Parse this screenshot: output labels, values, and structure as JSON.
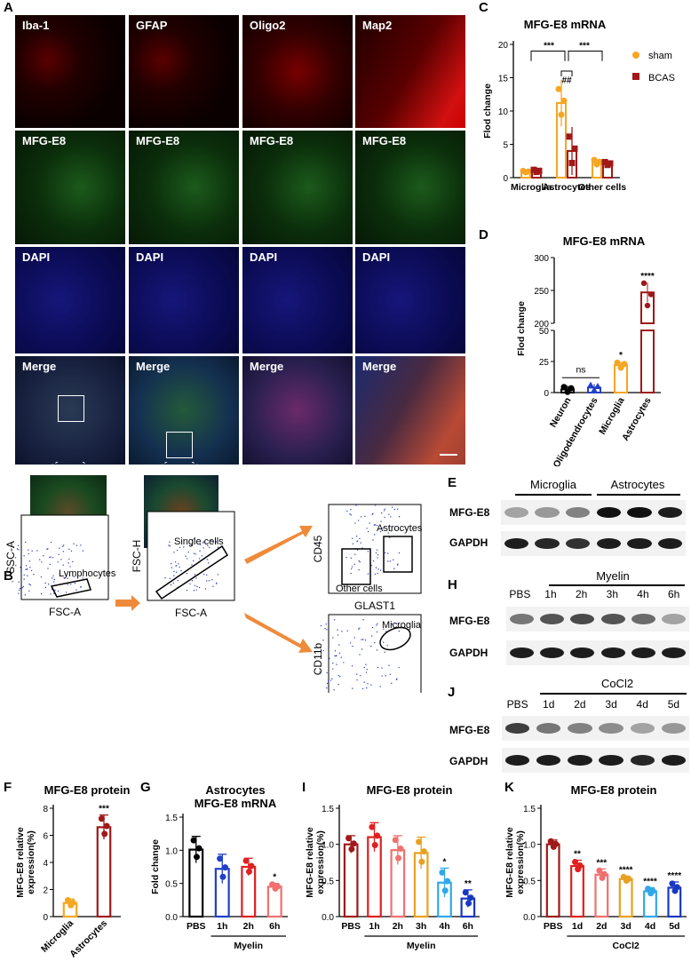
{
  "panels": {
    "A": "A",
    "B": "B",
    "C": "C",
    "D": "D",
    "E": "E",
    "F": "F",
    "G": "G",
    "H": "H",
    "I": "I",
    "J": "J",
    "K": "K"
  },
  "panel_a": {
    "row1": [
      "Iba-1",
      "GFAP",
      "Oligo2",
      "Map2"
    ],
    "row2": [
      "MFG-E8",
      "MFG-E8",
      "MFG-E8",
      "MFG-E8"
    ],
    "row3": [
      "DAPI",
      "DAPI",
      "DAPI",
      "DAPI"
    ],
    "row4": [
      "Merge",
      "Merge",
      "Merge",
      "Merge"
    ]
  },
  "panel_b": {
    "plot1": {
      "xlabel": "FSC-A",
      "ylabel": "SSC-A",
      "gate": "Lymphocytes"
    },
    "plot2": {
      "xlabel": "FSC-A",
      "ylabel": "FSC-H",
      "gate": "Single cells"
    },
    "plot3": {
      "xlabel": "GLAST1",
      "ylabel": "CD45",
      "gate1": "Astrocytes",
      "gate2": "Other cells"
    },
    "plot4": {
      "xlabel": "CD45",
      "ylabel": "CD11b",
      "gate": "Microglia"
    }
  },
  "panel_e": {
    "groups": [
      "Microglia",
      "Astrocytes"
    ],
    "rows": [
      "MFG-E8",
      "GAPDH"
    ]
  },
  "panel_h": {
    "group": "Myelin",
    "lanes": [
      "PBS",
      "1h",
      "2h",
      "3h",
      "4h",
      "6h"
    ],
    "rows": [
      "MFG-E8",
      "GAPDH"
    ]
  },
  "panel_j": {
    "group": "CoCl2",
    "lanes": [
      "PBS",
      "1d",
      "2d",
      "3d",
      "4d",
      "5d"
    ],
    "rows": [
      "MFG-E8",
      "GAPDH"
    ]
  },
  "colors": {
    "orange": "#f5a623",
    "darkred": "#a01818",
    "black": "#000000",
    "blue": "#2040c8",
    "red": "#e02020",
    "salmon": "#f07070",
    "gold": "#e8a020",
    "cyan": "#30a8e8",
    "darkblue": "#1838c0"
  },
  "chart_data": [
    {
      "id": "C",
      "type": "bar",
      "title": "MFG-E8 mRNA",
      "ylabel": "Flod change",
      "ylim": [
        0,
        20
      ],
      "yticks": [
        "0",
        "5",
        "10",
        "15",
        "20"
      ],
      "categories": [
        "Microglia",
        "Astrocytes",
        "Other cells"
      ],
      "series": [
        {
          "name": "sham",
          "values": [
            0.9,
            11.2,
            2.3
          ]
        },
        {
          "name": "BCAS",
          "values": [
            1.0,
            4.0,
            2.1
          ]
        }
      ],
      "annotations": [
        "***",
        "***",
        "##"
      ]
    },
    {
      "id": "D",
      "type": "bar",
      "title": "MFG-E8 mRNA",
      "ylabel": "Flod change",
      "yticks": [
        "0",
        "25",
        "50",
        "200",
        "250",
        "300"
      ],
      "categories": [
        "Neuron",
        "Oligodendrocytes",
        "Microglia",
        "Astrocytes"
      ],
      "values": [
        2.5,
        4.0,
        22.0,
        247.0
      ],
      "annotations": [
        "ns",
        "*",
        "****"
      ]
    },
    {
      "id": "F",
      "type": "bar",
      "title": "MFG-E8 protein",
      "ylabel": "MFG-E8 relative expression(%)",
      "ylim": [
        0,
        8
      ],
      "yticks": [
        "0",
        "2",
        "4",
        "6",
        "8"
      ],
      "categories": [
        "Microglia",
        "Astrocytes"
      ],
      "values": [
        1.0,
        6.6
      ],
      "annotations": [
        "***"
      ]
    },
    {
      "id": "G",
      "type": "bar",
      "title": "Astrocytes MFG-E8 mRNA",
      "ylabel": "Fold  change",
      "ylim": [
        0,
        1.5
      ],
      "yticks": [
        "0.0",
        "0.5",
        "1.0",
        "1.5"
      ],
      "categories": [
        "PBS",
        "1h",
        "2h",
        "6h"
      ],
      "group_label": "Myelin",
      "values": [
        1.01,
        0.72,
        0.75,
        0.45
      ],
      "annotations": [
        "*"
      ]
    },
    {
      "id": "I",
      "type": "bar",
      "title": "MFG-E8 protein",
      "ylabel": "MFG-E8 relative expression(%)",
      "ylim": [
        0,
        1.5
      ],
      "yticks": [
        "0.0",
        "0.5",
        "1.0",
        "1.5"
      ],
      "categories": [
        "PBS",
        "1h",
        "2h",
        "3h",
        "4h",
        "6h"
      ],
      "group_label": "Myelin",
      "values": [
        1.0,
        1.1,
        0.92,
        0.88,
        0.47,
        0.25
      ],
      "annotations": [
        "*",
        "**"
      ]
    },
    {
      "id": "K",
      "type": "bar",
      "title": "MFG-E8 protein",
      "ylabel": "MFG-E8 relative expression(%)",
      "ylim": [
        0,
        1.5
      ],
      "yticks": [
        "0.0",
        "0.5",
        "1.0",
        "1.5"
      ],
      "categories": [
        "PBS",
        "1d",
        "2d",
        "3d",
        "4d",
        "5d"
      ],
      "group_label": "CoCl2",
      "values": [
        1.0,
        0.7,
        0.58,
        0.52,
        0.35,
        0.4
      ],
      "annotations": [
        "**",
        "***",
        "****",
        "****",
        "****"
      ]
    }
  ]
}
